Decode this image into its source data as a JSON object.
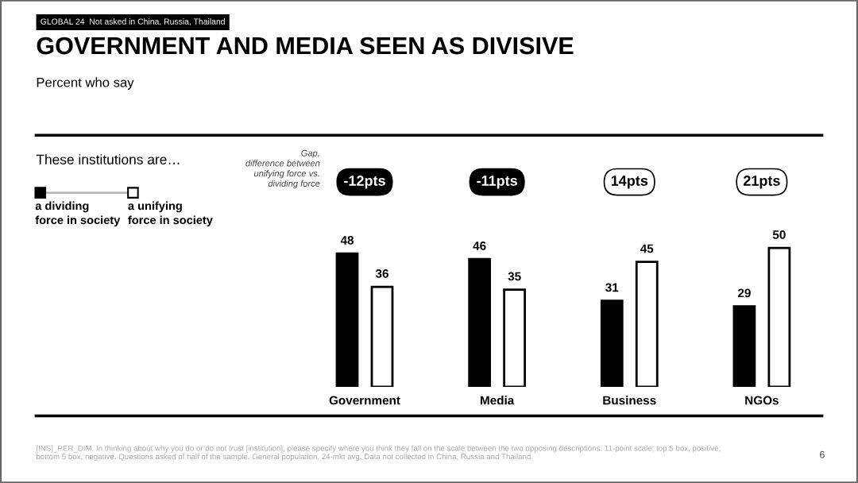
{
  "chart_data": {
    "type": "bar",
    "title": "GOVERNMENT AND MEDIA SEEN AS DIVISIVE",
    "subtitle": "Percent who say",
    "categories": [
      "Government",
      "Media",
      "Business",
      "NGOs"
    ],
    "series": [
      {
        "name": "a dividing\nforce in society",
        "color": "#000000",
        "values": [
          48,
          46,
          31,
          29
        ]
      },
      {
        "name": "a unifying\nforce in society",
        "color": "#ffffff",
        "values": [
          36,
          35,
          45,
          50
        ]
      }
    ],
    "data_labels": true,
    "tick_labels": "x",
    "legend": "top left",
    "annotations": [
      "-12pts",
      "-11pts",
      "14pts",
      "21pts",
      "GLOBAL 24  Not asked in China, Russia, Thailand",
      "These institutions are…",
      "Gap,\ndifference between\nunifying force vs.\ndividing force",
      "[INS]_PER_DIM. In thinking about why you do or do not trust [institution], please specify where you think they fall on the scale between the two opposing descriptions. 11-point scale; top 5 box, positive; bottom 5 box, negative. Questions asked of half of the sample. General population, 24-mkt avg. Data not collected in China, Russia and Thailand.",
      "6"
    ]
  }
}
